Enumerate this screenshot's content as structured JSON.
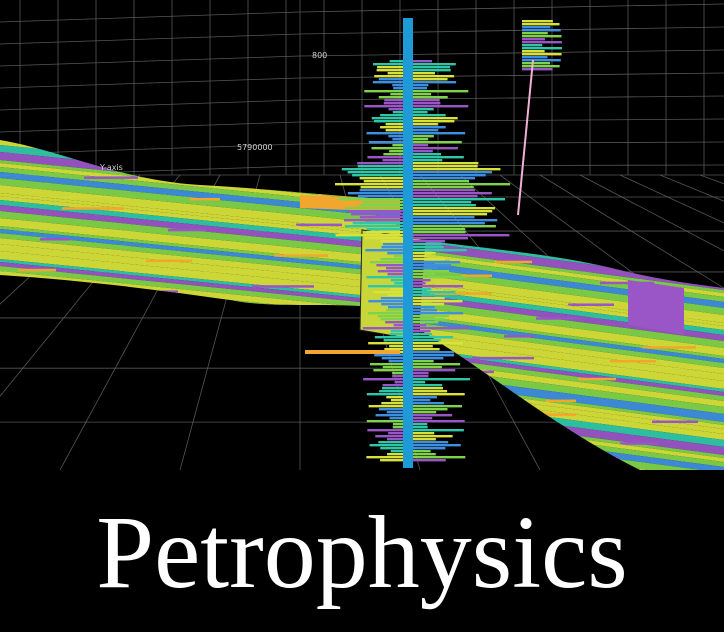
{
  "title": "Petrophysics",
  "axis_labels": {
    "y_axis": "Y-axis",
    "northing": "5790000",
    "depth": "800"
  },
  "colors": {
    "background": "#000000",
    "grid": "#6a6a6a",
    "well": "#1e9ad6",
    "layer_yellow": "#d8e23a",
    "layer_green": "#7fd34a",
    "layer_teal": "#2fc7a8",
    "layer_purple": "#9a55c6",
    "layer_orange": "#f2a62e",
    "layer_blue": "#3f8fe0",
    "title_text": "#ffffff"
  }
}
